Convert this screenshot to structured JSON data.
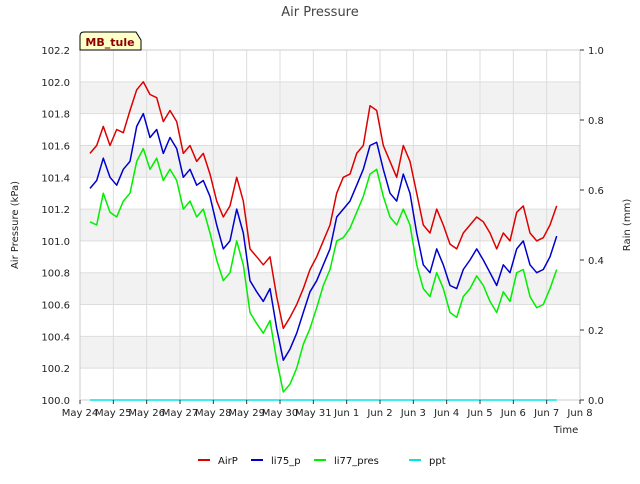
{
  "chart_data": {
    "type": "line",
    "title": "Air Pressure",
    "xlabel": "Time",
    "ylabel": "Air Pressure (kPa)",
    "y2label": "Rain (mm)",
    "station_label": "MB_tule",
    "ylim": [
      100.0,
      102.2
    ],
    "y2lim": [
      0.0,
      1.0
    ],
    "xlim": [
      0,
      15
    ],
    "x_tick_labels": [
      "May 24",
      "May 25",
      "May 26",
      "May 27",
      "May 28",
      "May 29",
      "May 30",
      "May 31",
      "Jun 1",
      "Jun 2",
      "Jun 3",
      "Jun 4",
      "Jun 5",
      "Jun 6",
      "Jun 7",
      "Jun 8"
    ],
    "y_tick_labels": [
      "100.0",
      "100.2",
      "100.4",
      "100.6",
      "100.8",
      "101.0",
      "101.2",
      "101.4",
      "101.6",
      "101.8",
      "102.0",
      "102.2"
    ],
    "y2_tick_labels": [
      "0.0",
      "0.2",
      "0.4",
      "0.6",
      "0.8",
      "1.0"
    ],
    "x": [
      0.3,
      0.5,
      0.7,
      0.9,
      1.1,
      1.3,
      1.5,
      1.7,
      1.9,
      2.1,
      2.3,
      2.5,
      2.7,
      2.9,
      3.1,
      3.3,
      3.5,
      3.7,
      3.9,
      4.1,
      4.3,
      4.5,
      4.7,
      4.9,
      5.1,
      5.3,
      5.5,
      5.7,
      5.9,
      6.1,
      6.3,
      6.5,
      6.7,
      6.9,
      7.1,
      7.3,
      7.5,
      7.7,
      7.9,
      8.1,
      8.3,
      8.5,
      8.7,
      8.9,
      9.1,
      9.3,
      9.5,
      9.7,
      9.9,
      10.1,
      10.3,
      10.5,
      10.7,
      10.9,
      11.1,
      11.3,
      11.5,
      11.7,
      11.9,
      12.1,
      12.3,
      12.5,
      12.7,
      12.9,
      13.1,
      13.3,
      13.5,
      13.7,
      13.9,
      14.1,
      14.3
    ],
    "series": [
      {
        "name": "AirP",
        "color": "#dd0000",
        "values": [
          101.55,
          101.6,
          101.72,
          101.6,
          101.7,
          101.68,
          101.82,
          101.95,
          102.0,
          101.92,
          101.9,
          101.75,
          101.82,
          101.75,
          101.55,
          101.6,
          101.5,
          101.55,
          101.42,
          101.25,
          101.15,
          101.22,
          101.4,
          101.25,
          100.95,
          100.9,
          100.85,
          100.9,
          100.65,
          100.45,
          100.52,
          100.6,
          100.7,
          100.82,
          100.9,
          101.0,
          101.1,
          101.3,
          101.4,
          101.42,
          101.55,
          101.6,
          101.85,
          101.82,
          101.6,
          101.5,
          101.4,
          101.6,
          101.5,
          101.3,
          101.1,
          101.05,
          101.2,
          101.1,
          100.98,
          100.95,
          101.05,
          101.1,
          101.15,
          101.12,
          101.05,
          100.95,
          101.05,
          101.0,
          101.18,
          101.22,
          101.05,
          101.0,
          101.02,
          101.1,
          101.22
        ]
      },
      {
        "name": "li75_p",
        "color": "#0000cc",
        "values": [
          101.33,
          101.38,
          101.52,
          101.4,
          101.35,
          101.45,
          101.5,
          101.72,
          101.8,
          101.65,
          101.7,
          101.55,
          101.65,
          101.58,
          101.4,
          101.45,
          101.35,
          101.38,
          101.28,
          101.1,
          100.95,
          101.0,
          101.2,
          101.05,
          100.75,
          100.68,
          100.62,
          100.7,
          100.45,
          100.25,
          100.32,
          100.42,
          100.55,
          100.68,
          100.75,
          100.85,
          100.95,
          101.15,
          101.2,
          101.25,
          101.35,
          101.45,
          101.6,
          101.62,
          101.45,
          101.3,
          101.25,
          101.42,
          101.3,
          101.05,
          100.85,
          100.8,
          100.95,
          100.85,
          100.72,
          100.7,
          100.82,
          100.88,
          100.95,
          100.88,
          100.8,
          100.72,
          100.85,
          100.8,
          100.95,
          101.0,
          100.85,
          100.8,
          100.82,
          100.9,
          101.03
        ]
      },
      {
        "name": "li77_pres",
        "color": "#00ee00",
        "values": [
          101.12,
          101.1,
          101.3,
          101.18,
          101.15,
          101.25,
          101.3,
          101.5,
          101.58,
          101.45,
          101.52,
          101.38,
          101.45,
          101.38,
          101.2,
          101.25,
          101.15,
          101.2,
          101.05,
          100.88,
          100.75,
          100.8,
          101.0,
          100.85,
          100.55,
          100.48,
          100.42,
          100.5,
          100.25,
          100.05,
          100.1,
          100.2,
          100.35,
          100.45,
          100.58,
          100.72,
          100.82,
          101.0,
          101.02,
          101.08,
          101.18,
          101.28,
          101.42,
          101.45,
          101.28,
          101.15,
          101.1,
          101.2,
          101.1,
          100.85,
          100.7,
          100.65,
          100.8,
          100.7,
          100.55,
          100.52,
          100.65,
          100.7,
          100.78,
          100.72,
          100.62,
          100.55,
          100.68,
          100.62,
          100.8,
          100.82,
          100.65,
          100.58,
          100.6,
          100.7,
          100.82
        ]
      },
      {
        "name": "ppt",
        "color": "#00e5e5",
        "axis": "y2",
        "values": [
          0,
          0,
          0,
          0,
          0,
          0,
          0,
          0,
          0,
          0,
          0,
          0,
          0,
          0,
          0,
          0,
          0,
          0,
          0,
          0,
          0,
          0,
          0,
          0,
          0,
          0,
          0,
          0,
          0,
          0,
          0,
          0,
          0,
          0,
          0,
          0,
          0,
          0,
          0,
          0,
          0,
          0,
          0,
          0,
          0,
          0,
          0,
          0,
          0,
          0,
          0,
          0,
          0,
          0,
          0,
          0,
          0,
          0,
          0,
          0,
          0,
          0,
          0,
          0,
          0,
          0,
          0,
          0,
          0,
          0,
          0
        ]
      }
    ],
    "grid": true,
    "legend_position": "bottom-center"
  }
}
